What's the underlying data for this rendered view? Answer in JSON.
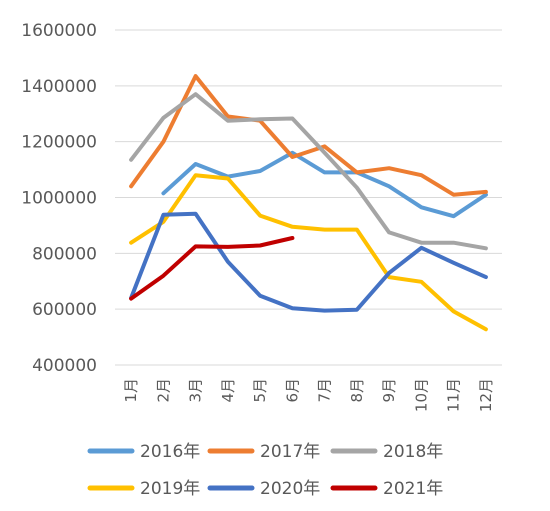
{
  "chart_data": {
    "type": "line",
    "title": "",
    "xlabel": "",
    "ylabel": "",
    "categories": [
      "1月",
      "2月",
      "3月",
      "4月",
      "5月",
      "6月",
      "7月",
      "8月",
      "9月",
      "10月",
      "11月",
      "12月"
    ],
    "ylim": [
      400000,
      1600000
    ],
    "yticks": [
      "400000",
      "600000",
      "800000",
      "1000000",
      "1200000",
      "1400000",
      "1600000"
    ],
    "grid": true,
    "legend_position": "bottom",
    "series": [
      {
        "name": "2016年",
        "color": "#5b9bd5",
        "values": [
          null,
          1015000,
          1120000,
          1075000,
          1095000,
          1160000,
          1090000,
          1090000,
          1040000,
          965000,
          933000,
          1010000
        ]
      },
      {
        "name": "2017年",
        "color": "#ed7d31",
        "values": [
          1040000,
          1200000,
          1435000,
          1290000,
          1275000,
          1145000,
          1183000,
          1090000,
          1105000,
          1080000,
          1010000,
          1020000
        ]
      },
      {
        "name": "2018年",
        "color": "#a5a5a5",
        "values": [
          1135000,
          1285000,
          1370000,
          1275000,
          1280000,
          1283000,
          1160000,
          1035000,
          875000,
          838000,
          838000,
          818000
        ]
      },
      {
        "name": "2019年",
        "color": "#ffc000",
        "values": [
          838000,
          913000,
          1080000,
          1068000,
          935000,
          895000,
          885000,
          885000,
          715000,
          698000,
          592000,
          528000
        ]
      },
      {
        "name": "2020年",
        "color": "#4472c4",
        "values": [
          640000,
          938000,
          942000,
          770000,
          648000,
          603000,
          595000,
          598000,
          730000,
          820000,
          766000,
          715000
        ]
      },
      {
        "name": "2021年",
        "color": "#c00000",
        "values": [
          638000,
          720000,
          825000,
          823000,
          828000,
          855000,
          null,
          null,
          null,
          null,
          null,
          null
        ]
      }
    ]
  }
}
